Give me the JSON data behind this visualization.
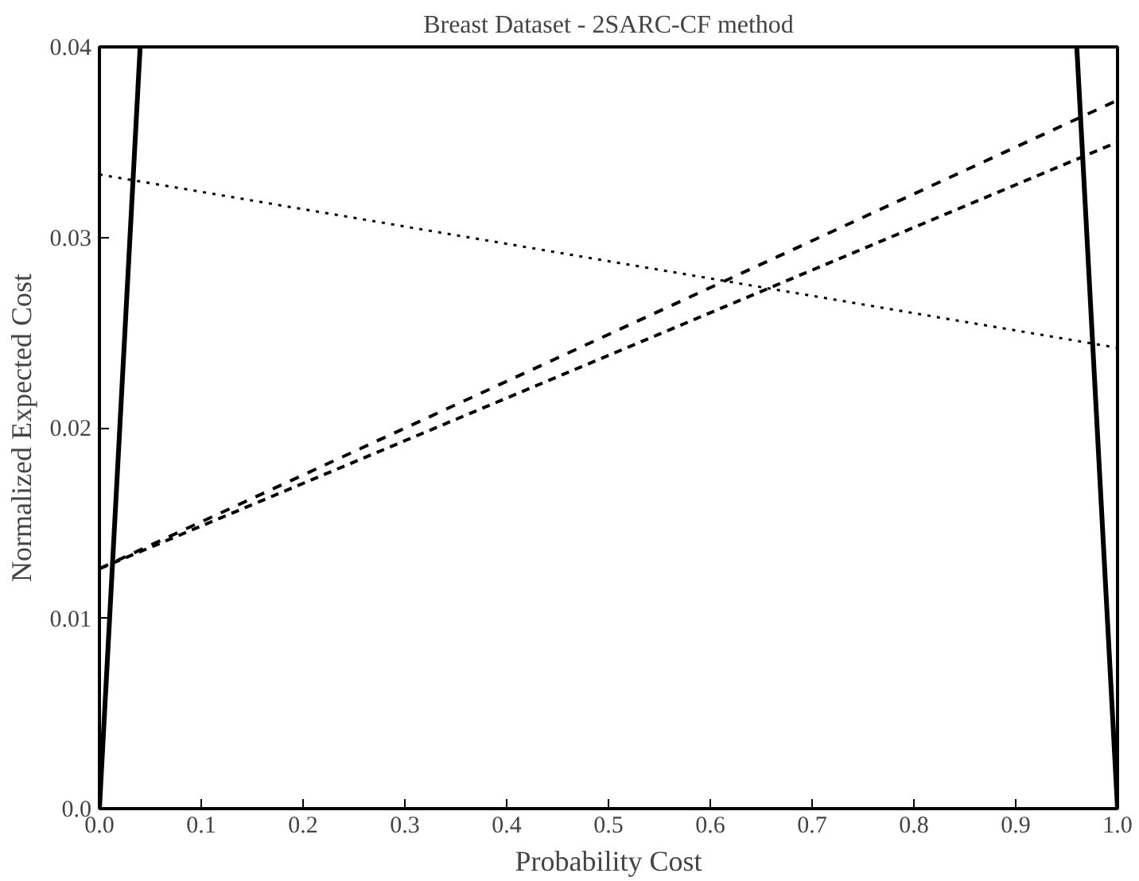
{
  "chart_data": {
    "type": "line",
    "title": "Breast Dataset - 2SARC-CF method",
    "xlabel": "Probability Cost",
    "ylabel": "Normalized Expected Cost",
    "xlim": [
      0,
      1
    ],
    "ylim": [
      0,
      0.04
    ],
    "xticks": [
      {
        "value": 0,
        "label": "0.0"
      },
      0.1,
      0.2,
      0.3,
      0.4,
      0.5,
      0.6,
      0.7,
      0.8,
      0.9,
      {
        "value": 1,
        "label": "1.0"
      }
    ],
    "yticks": [
      {
        "value": 0,
        "label": "0.0"
      },
      0.01,
      0.02,
      0.03,
      0.04
    ],
    "grid": false,
    "marker": "none",
    "series": [
      {
        "color": "#000000",
        "line_style": "solid",
        "x": [
          0,
          0.04
        ],
        "values": [
          0,
          0.04
        ]
      },
      {
        "color": "#000000",
        "line_style": "solid",
        "x": [
          0.96,
          1
        ],
        "values": [
          0.04,
          0
        ]
      },
      {
        "color": "#000000",
        "line_style": "dotted",
        "x": [
          0,
          1
        ],
        "values": [
          0.0333,
          0.0242
        ]
      },
      {
        "color": "#000000",
        "line_style": "dashed",
        "x": [
          0,
          1
        ],
        "values": [
          0.0126,
          0.0372
        ]
      },
      {
        "color": "#000000",
        "line_style": "dashed",
        "x": [
          0,
          1
        ],
        "values": [
          0.0126,
          0.035
        ]
      }
    ]
  }
}
